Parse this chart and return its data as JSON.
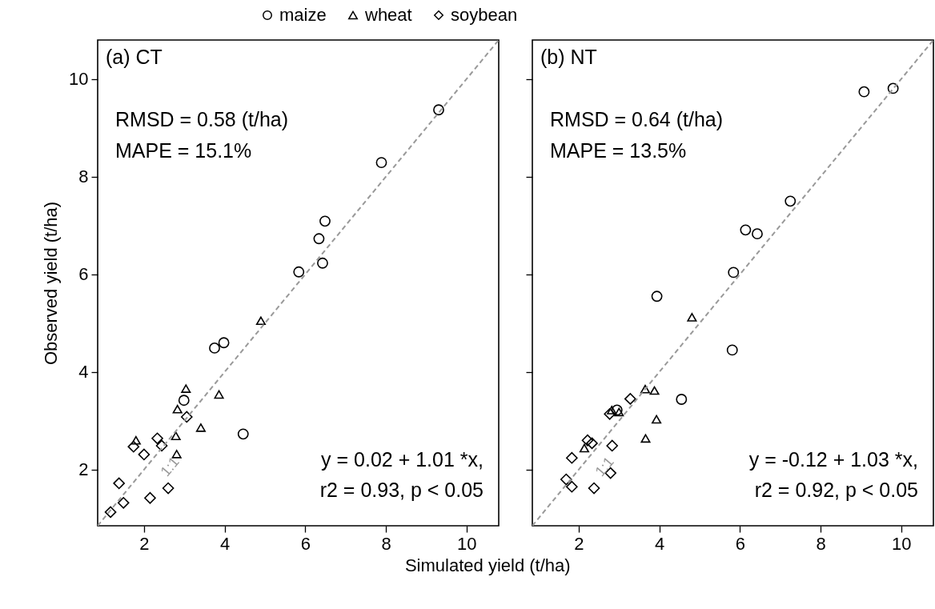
{
  "chart_data": [
    {
      "type": "scatter",
      "xlabel": "Simulated yield (t/ha)",
      "ylabel": "Observed yield (t/ha)",
      "xlim": [
        0.85,
        10.8
      ],
      "ylim": [
        0.85,
        10.8
      ],
      "xticks": [
        2,
        4,
        6,
        8,
        10
      ],
      "yticks": [
        2,
        4,
        6,
        8,
        10
      ],
      "grid": false,
      "legend": "top",
      "annotations": [
        "(a) CT",
        "RMSD = 0.58 (t/ha)",
        "MAPE = 15.1%",
        "y = 0.02 + 1.01 *x,",
        "r2 = 0.93, p < 0.05",
        "1:1"
      ],
      "series": [
        {
          "name": "maize",
          "color": "#000000",
          "marker": "circle",
          "x": [
            9.31,
            7.89,
            6.49,
            6.34,
            6.43,
            5.84,
            3.98,
            3.75,
            2.99,
            4.46
          ],
          "values": [
            9.37,
            8.29,
            7.09,
            6.73,
            6.23,
            6.05,
            4.6,
            4.49,
            3.42,
            2.73
          ]
        },
        {
          "name": "wheat",
          "color": "#000000",
          "marker": "triangle",
          "x": [
            4.9,
            3.04,
            3.86,
            2.83,
            3.41,
            2.79,
            2.81,
            1.8
          ],
          "values": [
            5.05,
            3.66,
            3.54,
            3.24,
            2.86,
            2.69,
            2.32,
            2.6
          ]
        },
        {
          "name": "soybean",
          "color": "#000000",
          "marker": "diamond",
          "x": [
            3.06,
            2.33,
            2.44,
            1.74,
            2.0,
            1.38,
            1.49,
            2.6,
            2.15,
            1.17
          ],
          "values": [
            3.08,
            2.64,
            2.49,
            2.47,
            2.31,
            1.72,
            1.32,
            1.62,
            1.42,
            1.13
          ]
        },
        {
          "type": "line",
          "color": "#999999",
          "line_style": "dashed",
          "x": [
            0.85,
            10.8
          ],
          "values": [
            0.85,
            10.8
          ]
        }
      ]
    },
    {
      "type": "scatter",
      "xlim": [
        0.85,
        10.8
      ],
      "ylim": [
        0.85,
        10.8
      ],
      "xticks": [
        2,
        4,
        6,
        8,
        10
      ],
      "yticks": [
        2,
        4,
        6,
        8,
        10
      ],
      "grid": false,
      "legend": "top",
      "tick_labels": "x",
      "annotations": [
        "(b) NT",
        "RMSD = 0.64 (t/ha)",
        "MAPE = 13.5%",
        "y = -0.12 + 1.03 *x,",
        "r2 = 0.92, p < 0.05",
        "1:1"
      ],
      "series": [
        {
          "name": "maize",
          "color": "#000000",
          "marker": "circle",
          "x": [
            9.8,
            9.08,
            7.25,
            6.14,
            6.43,
            5.84,
            3.94,
            5.81,
            4.55,
            2.95
          ],
          "values": [
            9.81,
            9.74,
            7.5,
            6.91,
            6.83,
            6.04,
            5.55,
            4.45,
            3.44,
            3.22
          ]
        },
        {
          "name": "wheat",
          "color": "#000000",
          "marker": "triangle",
          "x": [
            4.81,
            3.65,
            3.88,
            2.82,
            3.0,
            3.93,
            3.66,
            2.14
          ],
          "values": [
            5.12,
            3.65,
            3.62,
            3.22,
            3.18,
            3.03,
            2.64,
            2.44
          ]
        },
        {
          "name": "soybean",
          "color": "#000000",
          "marker": "diamond",
          "x": [
            3.28,
            2.77,
            2.22,
            2.33,
            2.83,
            1.83,
            2.79,
            1.69,
            1.83,
            2.38
          ],
          "values": [
            3.45,
            3.14,
            2.6,
            2.54,
            2.49,
            2.24,
            1.93,
            1.8,
            1.65,
            1.62
          ]
        },
        {
          "type": "line",
          "color": "#999999",
          "line_style": "dashed",
          "x": [
            0.85,
            10.8
          ],
          "values": [
            0.85,
            10.8
          ]
        }
      ]
    }
  ]
}
